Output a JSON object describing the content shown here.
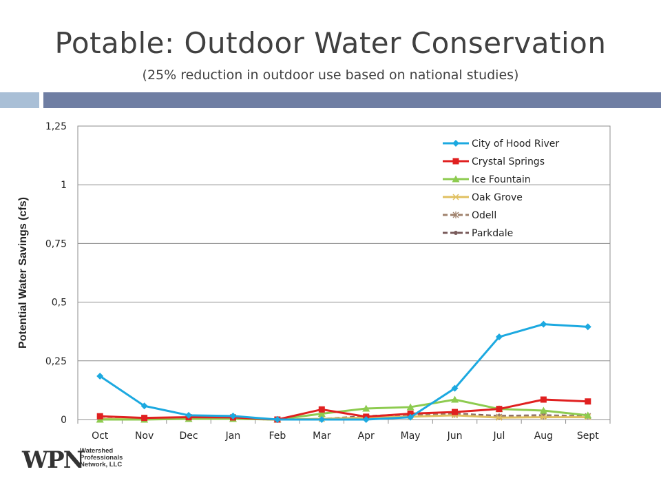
{
  "slide": {
    "title": "Potable: Outdoor Water Conservation",
    "subtitle": "(25% reduction in outdoor use based on national studies)"
  },
  "logo": {
    "mark": "WPN",
    "line1": "Watershed",
    "line2": "Professionals",
    "line3": "Network, LLC"
  },
  "chart_data": {
    "type": "line",
    "title": "",
    "xlabel": "",
    "ylabel": "Potential Water Savings (cfs)",
    "categories": [
      "Oct",
      "Nov",
      "Dec",
      "Jan",
      "Feb",
      "Mar",
      "Apr",
      "May",
      "Jun",
      "Jul",
      "Aug",
      "Sept"
    ],
    "ylim": [
      0,
      1.25
    ],
    "yticks": [
      0,
      0.25,
      0.5,
      0.75,
      1,
      1.25
    ],
    "ytick_labels": [
      "0",
      "0,25",
      "0,5",
      "0,75",
      "1",
      "1,25"
    ],
    "grid": true,
    "legend_position": "top-right",
    "series": [
      {
        "name": "City of Hood River",
        "color": "#1ca9e0",
        "marker": "diamond",
        "dash": "solid",
        "values": [
          0.185,
          0.058,
          0.018,
          0.015,
          0.0,
          0.0,
          0.0,
          0.01,
          0.133,
          0.352,
          0.406,
          0.395
        ]
      },
      {
        "name": "Crystal Springs",
        "color": "#e02020",
        "marker": "square",
        "dash": "solid",
        "values": [
          0.014,
          0.007,
          0.01,
          0.009,
          0.0,
          0.043,
          0.012,
          0.025,
          0.032,
          0.045,
          0.085,
          0.077
        ]
      },
      {
        "name": "Ice Fountain",
        "color": "#8dcb4f",
        "marker": "triangle",
        "dash": "solid",
        "values": [
          0.0,
          0.0,
          0.003,
          0.003,
          0.0,
          0.025,
          0.047,
          0.053,
          0.085,
          0.045,
          0.038,
          0.018
        ]
      },
      {
        "name": "Oak Grove",
        "color": "#e0c060",
        "marker": "x",
        "dash": "solid",
        "values": [
          0.002,
          0.002,
          0.003,
          0.003,
          0.0,
          0.003,
          0.008,
          0.012,
          0.018,
          0.008,
          0.01,
          0.01
        ]
      },
      {
        "name": "Odell",
        "color": "#a0826d",
        "marker": "star",
        "dash": "dashed",
        "values": [
          0.003,
          0.004,
          0.005,
          0.005,
          0.0,
          0.002,
          0.01,
          0.02,
          0.022,
          0.012,
          0.015,
          0.015
        ]
      },
      {
        "name": "Parkdale",
        "color": "#7a5c5c",
        "marker": "circle",
        "dash": "dashed",
        "values": [
          0.002,
          0.003,
          0.004,
          0.004,
          0.0,
          0.002,
          0.014,
          0.022,
          0.025,
          0.015,
          0.018,
          0.014
        ]
      }
    ]
  }
}
